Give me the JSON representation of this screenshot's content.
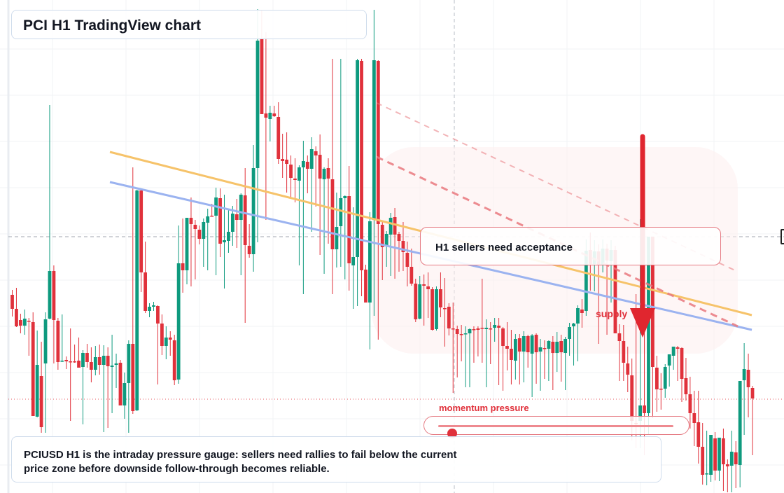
{
  "header": {
    "title": "PCI H1 TradingView chart"
  },
  "callout": {
    "text": "H1 sellers need acceptance"
  },
  "zone_label": "supply",
  "gauge": {
    "label": "momentum pressure",
    "level": 0.06
  },
  "caption": {
    "text": "PCIUSD H1 is the intraday pressure gauge: sellers need rallies to fail below the current price zone before downside follow-through becomes reliable."
  },
  "colors": {
    "bull": "#0e9a7e",
    "bear": "#e0313b",
    "orange_line": "#f6c36a",
    "blue_line": "#9bb3f0",
    "dashed": "#e9797f"
  },
  "chart_data": {
    "type": "candlestick",
    "grid": true,
    "ylim": [
      0,
      704
    ],
    "candles_ohlc": [
      [
        421,
        414,
        452,
        441
      ],
      [
        441,
        411,
        467,
        466
      ],
      [
        457,
        448,
        476,
        465
      ],
      [
        465,
        442,
        478,
        455
      ],
      [
        458,
        454,
        508,
        459
      ],
      [
        460,
        446,
        593,
        594
      ],
      [
        595,
        472,
        596,
        521
      ],
      [
        537,
        488,
        618,
        610
      ],
      [
        519,
        446,
        618,
        456
      ],
      [
        455,
        150,
        456,
        387
      ],
      [
        387,
        379,
        519,
        457
      ],
      [
        458,
        454,
        528,
        517
      ],
      [
        516,
        449,
        517,
        515
      ],
      [
        514,
        509,
        527,
        516
      ],
      [
        516,
        469,
        601,
        517
      ],
      [
        516,
        492,
        518,
        517
      ],
      [
        515,
        482,
        521,
        525
      ],
      [
        524,
        500,
        606,
        504
      ],
      [
        504,
        491,
        525,
        517
      ],
      [
        517,
        496,
        546,
        528
      ],
      [
        528,
        494,
        536,
        510
      ],
      [
        510,
        492,
        535,
        521
      ],
      [
        521,
        493,
        617,
        508
      ],
      [
        508,
        496,
        611,
        523
      ],
      [
        524,
        478,
        590,
        522
      ],
      [
        521,
        505,
        554,
        519
      ],
      [
        518,
        514,
        557,
        579
      ],
      [
        579,
        532,
        598,
        547
      ],
      [
        547,
        486,
        618,
        491
      ],
      [
        491,
        239,
        591,
        587
      ],
      [
        586,
        271,
        587,
        272
      ],
      [
        272,
        270,
        417,
        389
      ],
      [
        389,
        345,
        447,
        444
      ],
      [
        444,
        433,
        453,
        438
      ],
      [
        438,
        431,
        444,
        436
      ],
      [
        437,
        436,
        549,
        462
      ],
      [
        462,
        449,
        507,
        494
      ],
      [
        494,
        466,
        513,
        482
      ],
      [
        482,
        473,
        508,
        485
      ],
      [
        486,
        478,
        550,
        543
      ],
      [
        542,
        322,
        548,
        376
      ],
      [
        376,
        312,
        418,
        386
      ],
      [
        386,
        311,
        406,
        311
      ],
      [
        311,
        282,
        409,
        320
      ],
      [
        321,
        314,
        399,
        327
      ],
      [
        328,
        322,
        349,
        341
      ],
      [
        341,
        312,
        381,
        317
      ],
      [
        318,
        298,
        386,
        309
      ],
      [
        308,
        291,
        309,
        308
      ],
      [
        308,
        268,
        393,
        282
      ],
      [
        283,
        269,
        367,
        348
      ],
      [
        346,
        278,
        412,
        343
      ],
      [
        344,
        300,
        361,
        331
      ],
      [
        331,
        294,
        351,
        305
      ],
      [
        306,
        284,
        354,
        314
      ],
      [
        314,
        276,
        393,
        278
      ],
      [
        279,
        240,
        461,
        350
      ],
      [
        351,
        320,
        368,
        363
      ],
      [
        363,
        207,
        388,
        240
      ],
      [
        240,
        13,
        346,
        58
      ],
      [
        56,
        15,
        160,
        163
      ],
      [
        162,
        46,
        314,
        168
      ],
      [
        170,
        151,
        202,
        161
      ],
      [
        162,
        151,
        167,
        166
      ],
      [
        167,
        146,
        234,
        227
      ],
      [
        227,
        191,
        254,
        230
      ],
      [
        228,
        189,
        275,
        234
      ],
      [
        235,
        222,
        283,
        254
      ],
      [
        255,
        226,
        289,
        257
      ],
      [
        258,
        236,
        379,
        239
      ],
      [
        239,
        201,
        420,
        230
      ],
      [
        231,
        222,
        276,
        241
      ],
      [
        241,
        196,
        331,
        213
      ],
      [
        216,
        209,
        295,
        222
      ],
      [
        221,
        192,
        364,
        255
      ],
      [
        256,
        239,
        391,
        241
      ],
      [
        240,
        226,
        348,
        255
      ],
      [
        256,
        84,
        420,
        356
      ],
      [
        356,
        275,
        382,
        324
      ],
      [
        323,
        84,
        381,
        283
      ],
      [
        283,
        279,
        399,
        280
      ],
      [
        280,
        237,
        415,
        376
      ],
      [
        379,
        296,
        441,
        367
      ],
      [
        367,
        84,
        437,
        86
      ],
      [
        87,
        84,
        423,
        386
      ],
      [
        385,
        378,
        416,
        432
      ],
      [
        432,
        303,
        499,
        316
      ],
      [
        314,
        14,
        451,
        86
      ],
      [
        87,
        86,
        485,
        320
      ],
      [
        321,
        317,
        400,
        353
      ],
      [
        352,
        330,
        381,
        334
      ],
      [
        335,
        304,
        394,
        311
      ],
      [
        310,
        297,
        398,
        335
      ],
      [
        334,
        331,
        388,
        344
      ],
      [
        344,
        317,
        387,
        360
      ],
      [
        361,
        345,
        409,
        381
      ],
      [
        381,
        355,
        408,
        405
      ],
      [
        405,
        398,
        460,
        456
      ],
      [
        455,
        394,
        456,
        406
      ],
      [
        406,
        392,
        465,
        408
      ],
      [
        409,
        389,
        454,
        413
      ],
      [
        413,
        410,
        472,
        471
      ],
      [
        470,
        409,
        472,
        413
      ],
      [
        413,
        389,
        453,
        439
      ],
      [
        440,
        397,
        495,
        440
      ],
      [
        438,
        433,
        479,
        469
      ],
      [
        469,
        432,
        561,
        470
      ],
      [
        470,
        465,
        539,
        477
      ],
      [
        477,
        464,
        516,
        477
      ],
      [
        477,
        466,
        553,
        476
      ],
      [
        476,
        469,
        553,
        470
      ],
      [
        470,
        466,
        518,
        471
      ],
      [
        469,
        466,
        509,
        471
      ],
      [
        468,
        398,
        518,
        469
      ],
      [
        470,
        456,
        553,
        468
      ],
      [
        469,
        460,
        520,
        469
      ],
      [
        468,
        454,
        488,
        464
      ],
      [
        465,
        454,
        550,
        468
      ],
      [
        469,
        467,
        558,
        494
      ],
      [
        494,
        460,
        529,
        498
      ],
      [
        498,
        471,
        549,
        514
      ],
      [
        515,
        477,
        542,
        484
      ],
      [
        483,
        477,
        549,
        502
      ],
      [
        502,
        473,
        546,
        480
      ],
      [
        480,
        478,
        525,
        503
      ],
      [
        505,
        477,
        567,
        479
      ],
      [
        478,
        476,
        548,
        503
      ],
      [
        502,
        484,
        558,
        496
      ],
      [
        497,
        486,
        541,
        497
      ],
      [
        498,
        486,
        544,
        487
      ],
      [
        488,
        480,
        557,
        504
      ],
      [
        504,
        474,
        531,
        488
      ],
      [
        487,
        478,
        545,
        503
      ],
      [
        504,
        481,
        557,
        484
      ],
      [
        484,
        461,
        508,
        467
      ],
      [
        466,
        461,
        522,
        462
      ],
      [
        462,
        436,
        516,
        440
      ],
      [
        442,
        427,
        468,
        447
      ],
      [
        444,
        342,
        451,
        358
      ],
      [
        357,
        332,
        415,
        377
      ],
      [
        377,
        343,
        416,
        359
      ],
      [
        359,
        349,
        491,
        379
      ],
      [
        379,
        342,
        389,
        355
      ],
      [
        355,
        348,
        478,
        372
      ],
      [
        373,
        343,
        432,
        357
      ],
      [
        357,
        351,
        469,
        476
      ],
      [
        476,
        463,
        544,
        487
      ],
      [
        487,
        464,
        544,
        518
      ],
      [
        519,
        495,
        560,
        535
      ],
      [
        536,
        512,
        629,
        601
      ],
      [
        604,
        420,
        640,
        605
      ],
      [
        601,
        313,
        640,
        579
      ],
      [
        579,
        338,
        650,
        590
      ],
      [
        590,
        339,
        620,
        338
      ],
      [
        338,
        339,
        597,
        524
      ],
      [
        525,
        508,
        588,
        556
      ],
      [
        555,
        533,
        585,
        555
      ],
      [
        555,
        520,
        568,
        524
      ],
      [
        522,
        509,
        552,
        506
      ],
      [
        508,
        499,
        528,
        495
      ],
      [
        496,
        494,
        544,
        498
      ],
      [
        497,
        496,
        574,
        541
      ],
      [
        540,
        511,
        572,
        563
      ],
      [
        563,
        538,
        612,
        590
      ],
      [
        590,
        558,
        637,
        604
      ],
      [
        603,
        558,
        662,
        638
      ],
      [
        638,
        604,
        692,
        678
      ],
      [
        677,
        615,
        693,
        676
      ],
      [
        678,
        627,
        688,
        621
      ],
      [
        626,
        617,
        686,
        672
      ],
      [
        672,
        648,
        687,
        625
      ],
      [
        626,
        612,
        701,
        663
      ],
      [
        663,
        656,
        703,
        666
      ],
      [
        665,
        615,
        703,
        645
      ],
      [
        646,
        630,
        697,
        663
      ],
      [
        664,
        645,
        696,
        544
      ],
      [
        543,
        490,
        621,
        527
      ],
      [
        528,
        505,
        596,
        553
      ],
      [
        554,
        551,
        650,
        569
      ]
    ],
    "trendlines": [
      {
        "kind": "solid",
        "color": "orange",
        "from": [
          157,
          217
        ],
        "to": [
          1074,
          450
        ]
      },
      {
        "kind": "solid",
        "color": "blue",
        "from": [
          157,
          260
        ],
        "to": [
          1074,
          471
        ]
      },
      {
        "kind": "dashed",
        "color": "red",
        "from": [
          538,
          224
        ],
        "to": [
          1054,
          466
        ]
      },
      {
        "kind": "dashed-faint",
        "color": "red",
        "from": [
          538,
          147
        ],
        "to": [
          1052,
          387
        ]
      }
    ],
    "reference_lines": {
      "price_now_y": 338,
      "lower_dotted_y": 570,
      "vertical_x": 649
    },
    "supply_zone": [
      531,
      210,
      1054,
      505
    ],
    "arrow": {
      "x": 918,
      "from_y": 195,
      "to_y": 482
    }
  }
}
